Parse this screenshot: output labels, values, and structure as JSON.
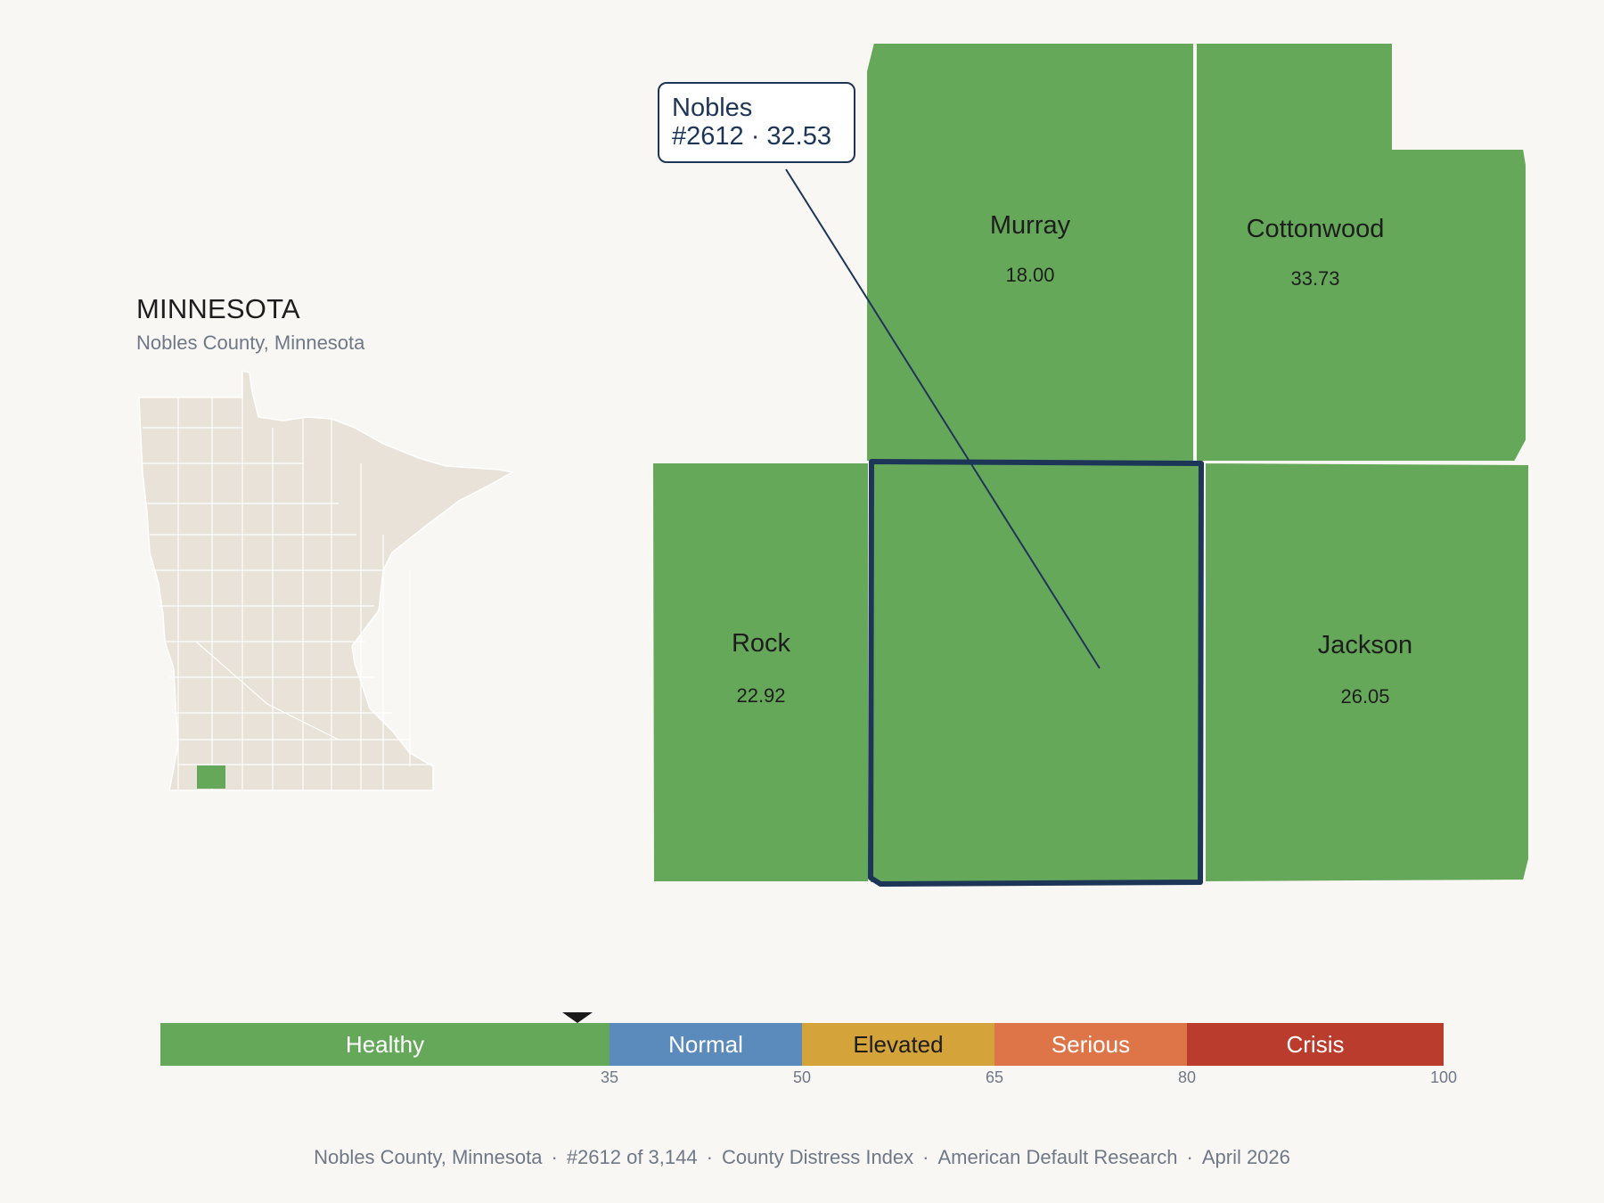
{
  "header": {
    "state_name": "MINNESOTA",
    "subtitle": "Nobles County, Minnesota"
  },
  "inset_map": {
    "base_color": "#e8e2d8",
    "highlight_color": "#66a85a",
    "highlighted_county": "Nobles"
  },
  "callout": {
    "line1": "Nobles",
    "line2": "#2612 · 32.53"
  },
  "counties": [
    {
      "name": "Murray",
      "value": "18.00",
      "color": "#66a85a"
    },
    {
      "name": "Cottonwood",
      "value": "33.73",
      "color": "#66a85a"
    },
    {
      "name": "Rock",
      "value": "22.92",
      "color": "#66a85a"
    },
    {
      "name": "Nobles",
      "value": "32.53",
      "color": "#66a85a",
      "selected": true
    },
    {
      "name": "Jackson",
      "value": "26.05",
      "color": "#66a85a"
    }
  ],
  "selection_border_color": "#1d3557",
  "legend": {
    "min": 0,
    "max": 100,
    "marker_value": 32.53,
    "segments": [
      {
        "label": "Healthy",
        "from": 0,
        "to": 35,
        "color": "#66a85a",
        "text_color": "#ffffff"
      },
      {
        "label": "Normal",
        "from": 35,
        "to": 50,
        "color": "#5b8bbd",
        "text_color": "#ffffff"
      },
      {
        "label": "Elevated",
        "from": 50,
        "to": 65,
        "color": "#d4a33a",
        "text_color": "#1d1d1d"
      },
      {
        "label": "Serious",
        "from": 65,
        "to": 80,
        "color": "#dd7548",
        "text_color": "#ffffff"
      },
      {
        "label": "Crisis",
        "from": 80,
        "to": 100,
        "color": "#b93c2c",
        "text_color": "#ffffff"
      }
    ],
    "ticks": [
      "35",
      "50",
      "65",
      "80",
      "100"
    ]
  },
  "footer": {
    "county": "Nobles County, Minnesota",
    "rank": "#2612 of 3,144",
    "index": "County Distress Index",
    "org": "American Default Research",
    "date": "April 2026"
  }
}
